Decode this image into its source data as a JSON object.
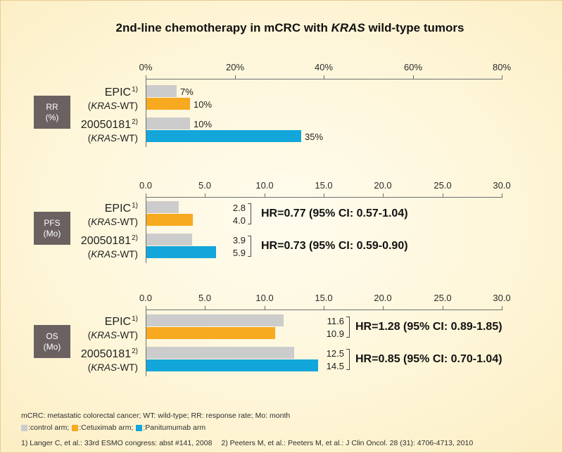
{
  "title": {
    "before": "2nd-line chemotherapy in mCRC with ",
    "italic": "KRAS",
    "after": " wild-type tumors"
  },
  "colors": {
    "label_box": "#6B6161",
    "axis": "#6F6F6F"
  },
  "legend": {
    "items": [
      {
        "label": ":control arm;",
        "color": "#CCCCCC"
      },
      {
        "label": ":Cetuximab arm;",
        "color": "#F7A91F"
      },
      {
        "label": ":Panitumumab arm",
        "color": "#13A6DA"
      }
    ]
  },
  "footnotes": {
    "abbreviations": "mCRC: metastatic colorectal cancer; WT: wild-type; RR: response rate; Mo: month",
    "references": [
      "1) Langer C, et al.: 33rd ESMO congress: abst #141, 2008",
      "2) Peeters M, et al.: Peeters M, et al.: J Clin Oncol. 28 (31): 4706-4713, 2010"
    ]
  },
  "chart_data": [
    {
      "type": "bar",
      "horizontal": true,
      "grid": false,
      "legend_position": "bottom-left",
      "measure_label": {
        "line1": "RR",
        "line2": "(%)"
      },
      "xlim": [
        0,
        80
      ],
      "ticks": [
        {
          "value": 0,
          "label": "0%"
        },
        {
          "value": 20,
          "label": "20%"
        },
        {
          "value": 40,
          "label": "40%"
        },
        {
          "value": 60,
          "label": "60%"
        },
        {
          "value": 80,
          "label": "80%"
        }
      ],
      "groups": [
        {
          "category": {
            "name": "EPIC",
            "sup": "1)",
            "sub_open": "(",
            "sub_italic": "KRAS",
            "sub_close": "-WT)"
          },
          "bars": [
            {
              "series": 0,
              "value": 7,
              "label": "7%"
            },
            {
              "series": 1,
              "value": 10,
              "label": "10%"
            }
          ]
        },
        {
          "category": {
            "name": "20050181",
            "sup": "2)",
            "sub_open": "(",
            "sub_italic": "KRAS",
            "sub_close": "-WT)"
          },
          "bars": [
            {
              "series": 0,
              "value": 10,
              "label": "10%"
            },
            {
              "series": 2,
              "value": 35,
              "label": "35%"
            }
          ]
        }
      ]
    },
    {
      "type": "bar",
      "horizontal": true,
      "grid": false,
      "legend_position": "bottom-left",
      "measure_label": {
        "line1": "PFS",
        "line2": "(Mo)"
      },
      "xlim": [
        0,
        30
      ],
      "ticks": [
        {
          "value": 0,
          "label": "0.0"
        },
        {
          "value": 5,
          "label": "5.0"
        },
        {
          "value": 10,
          "label": "10.0"
        },
        {
          "value": 15,
          "label": "15.0"
        },
        {
          "value": 20,
          "label": "20.0"
        },
        {
          "value": 25,
          "label": "25.0"
        },
        {
          "value": 30,
          "label": "30.0"
        }
      ],
      "groups": [
        {
          "category": {
            "name": "EPIC",
            "sup": "1)",
            "sub_open": "(",
            "sub_italic": "KRAS",
            "sub_close": "-WT)"
          },
          "bars": [
            {
              "series": 0,
              "value": 2.8,
              "label": "2.8"
            },
            {
              "series": 1,
              "value": 4.0,
              "label": "4.0"
            }
          ],
          "hr": "HR=0.77 (95% CI: 0.57-1.04)"
        },
        {
          "category": {
            "name": "20050181",
            "sup": "2)",
            "sub_open": "(",
            "sub_italic": "KRAS",
            "sub_close": "-WT)"
          },
          "bars": [
            {
              "series": 0,
              "value": 3.9,
              "label": "3.9"
            },
            {
              "series": 2,
              "value": 5.9,
              "label": "5.9"
            }
          ],
          "hr": "HR=0.73 (95% CI: 0.59-0.90)"
        }
      ]
    },
    {
      "type": "bar",
      "horizontal": true,
      "grid": false,
      "legend_position": "bottom-left",
      "measure_label": {
        "line1": "OS",
        "line2": "(Mo)"
      },
      "xlim": [
        0,
        30
      ],
      "ticks": [
        {
          "value": 0,
          "label": "0.0"
        },
        {
          "value": 5,
          "label": "5.0"
        },
        {
          "value": 10,
          "label": "10.0"
        },
        {
          "value": 15,
          "label": "15.0"
        },
        {
          "value": 20,
          "label": "20.0"
        },
        {
          "value": 25,
          "label": "25.0"
        },
        {
          "value": 30,
          "label": "30.0"
        }
      ],
      "groups": [
        {
          "category": {
            "name": "EPIC",
            "sup": "1)",
            "sub_open": "(",
            "sub_italic": "KRAS",
            "sub_close": "-WT)"
          },
          "bars": [
            {
              "series": 0,
              "value": 11.6,
              "label": "11.6"
            },
            {
              "series": 1,
              "value": 10.9,
              "label": "10.9"
            }
          ],
          "hr": "HR=1.28 (95% CI: 0.89-1.85)"
        },
        {
          "category": {
            "name": "20050181",
            "sup": "2)",
            "sub_open": "(",
            "sub_italic": "KRAS",
            "sub_close": "-WT)"
          },
          "bars": [
            {
              "series": 0,
              "value": 12.5,
              "label": "12.5"
            },
            {
              "series": 2,
              "value": 14.5,
              "label": "14.5"
            }
          ],
          "hr": "HR=0.85 (95% CI: 0.70-1.04)"
        }
      ]
    }
  ]
}
